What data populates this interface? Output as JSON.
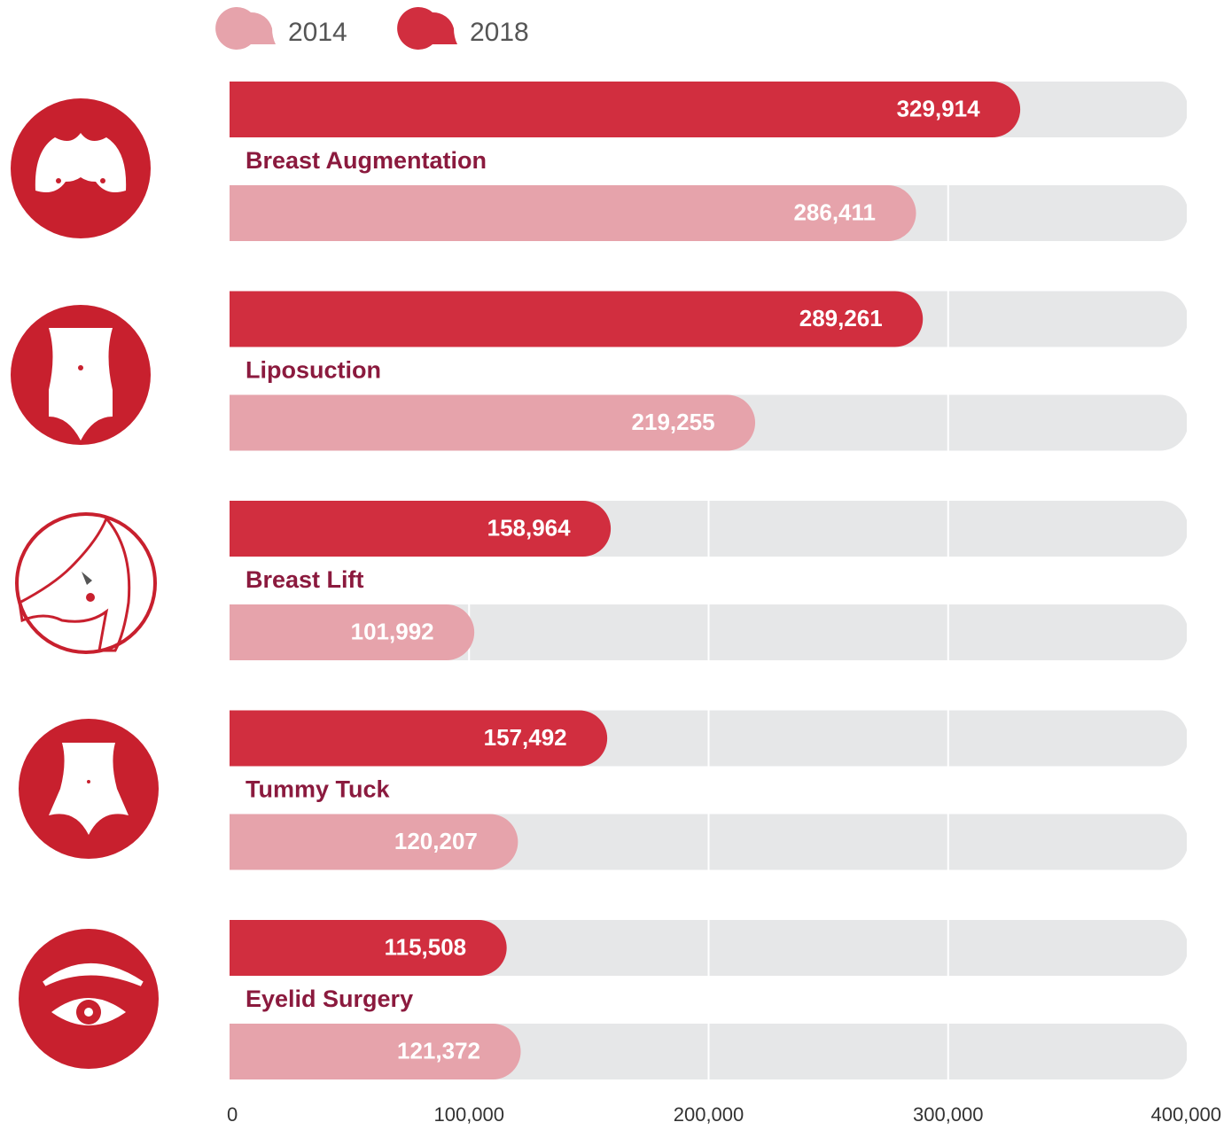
{
  "chart_data": {
    "type": "bar",
    "orientation": "horizontal",
    "categories": [
      "Breast Augmentation",
      "Liposuction",
      "Breast Lift",
      "Tummy Tuck",
      "Eyelid Surgery"
    ],
    "series": [
      {
        "name": "2018",
        "color": "#d12e3f",
        "values": [
          329914,
          289261,
          158964,
          157492,
          115508
        ],
        "value_labels": [
          "329,914",
          "289,261",
          "158,964",
          "157,492",
          "115,508"
        ]
      },
      {
        "name": "2014",
        "color": "#e6a3ab",
        "values": [
          286411,
          219255,
          101992,
          120207,
          121372
        ],
        "value_labels": [
          "286,411",
          "219,255",
          "101,992",
          "120,207",
          "121,372"
        ]
      }
    ],
    "xlim": [
      0,
      400000
    ],
    "xticks": [
      0,
      {
        "value": 100000,
        "label": "100,000"
      },
      {
        "value": 200000,
        "label": "200,000"
      },
      {
        "value": 300000,
        "label": "300,000"
      },
      {
        "value": 400000,
        "label": "400,000"
      }
    ],
    "grid": true
  }
}
